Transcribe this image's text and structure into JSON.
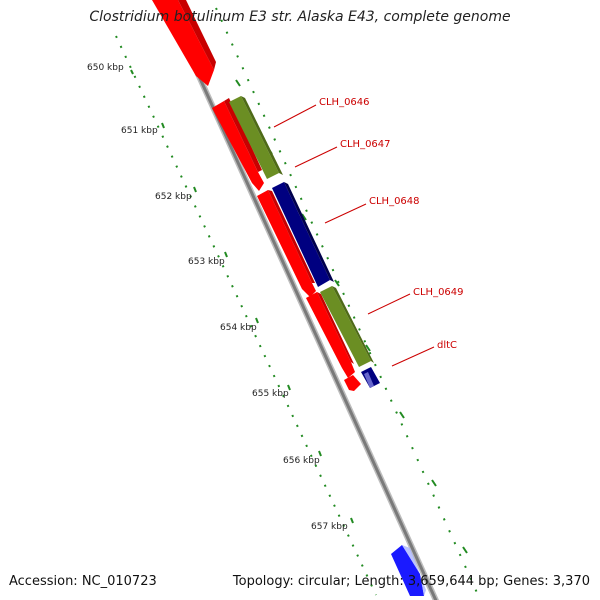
{
  "title": "Clostridium botulinum E3 str. Alaska E43, complete genome",
  "footer": {
    "accession": "Accession: NC_010723",
    "summary": "Topology: circular; Length: 3,659,644 bp; Genes: 3,370"
  },
  "ruler_ticks": [
    "650 kbp",
    "651 kbp",
    "652 kbp",
    "653 kbp",
    "654 kbp",
    "655 kbp",
    "656 kbp",
    "657 kbp"
  ],
  "gene_labels": [
    "CLH_0646",
    "CLH_0647",
    "CLH_0648",
    "CLH_0649",
    "dltC"
  ],
  "colors": {
    "forward_gene": "#ff0000",
    "cds_olive": "#6b8e23",
    "cds_navy": "#000080",
    "highlight_blue": "#1a1aff",
    "backbone": "#8c8c8c",
    "tick_green": "#228b22",
    "label_red": "#cc0000"
  }
}
